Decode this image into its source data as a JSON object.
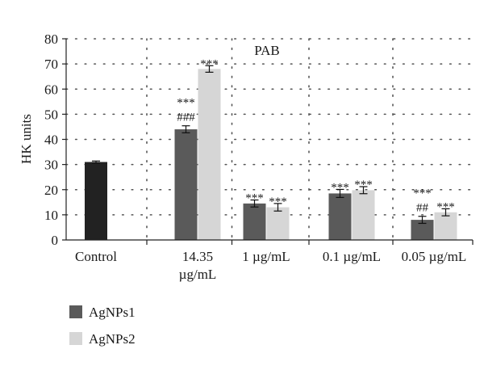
{
  "chart_data": {
    "type": "bar",
    "title": "PAB",
    "ylabel": "HK units",
    "xlabel": "",
    "ylim": [
      0,
      80
    ],
    "yticks": [
      0,
      10,
      20,
      30,
      40,
      50,
      60,
      70,
      80
    ],
    "grid": "dotted horizontal",
    "legend_position": "bottom-left",
    "categories": [
      {
        "lines": [
          "Control"
        ]
      },
      {
        "lines": [
          "14.35",
          "µg/mL"
        ]
      },
      {
        "lines": [
          "1 µg/mL"
        ]
      },
      {
        "lines": [
          "0.1 µg/mL"
        ]
      },
      {
        "lines": [
          "0.05 µg/mL"
        ]
      }
    ],
    "control": {
      "value": 31,
      "error": 0.4,
      "color": "#222222"
    },
    "series": [
      {
        "name": "AgNPs1",
        "color": "#5a5a5a",
        "values": [
          null,
          44,
          14.5,
          18.5,
          8
        ],
        "errors": [
          null,
          1.4,
          1.4,
          1.6,
          1.4
        ],
        "annotations": [
          null,
          [
            "***",
            "###"
          ],
          [
            "***"
          ],
          [
            "***"
          ],
          [
            "***",
            "##"
          ]
        ]
      },
      {
        "name": "AgNPs2",
        "color": "#d6d6d6",
        "values": [
          null,
          68,
          13,
          19.8,
          11
        ],
        "errors": [
          null,
          1.3,
          1.5,
          1.4,
          1.4
        ],
        "annotations": [
          null,
          [
            "***"
          ],
          [
            "***"
          ],
          [
            "***"
          ],
          [
            "***"
          ]
        ]
      }
    ]
  }
}
